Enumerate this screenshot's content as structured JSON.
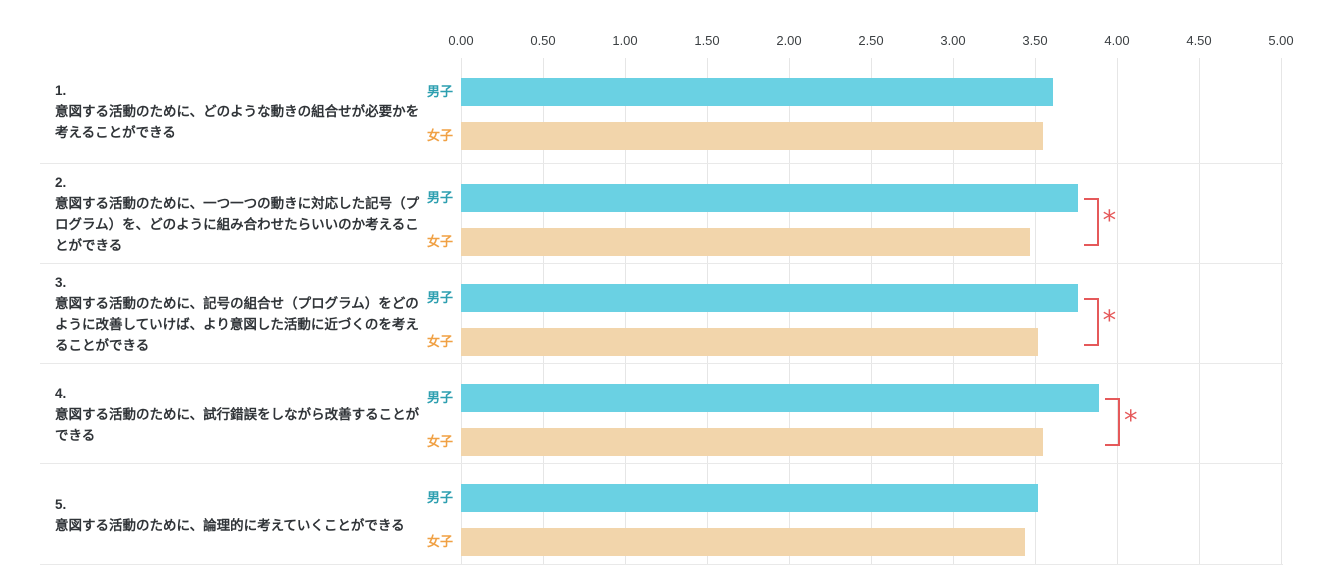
{
  "colors": {
    "male_bar": "#6ad1e3",
    "female_bar": "#f2d5ab",
    "male_label": "#2d9fb0",
    "female_label": "#f0a145",
    "significance": "#e5595a",
    "gridline": "#e6e6e6",
    "separator": "#e9e9e9",
    "axis_text": "#3c4043",
    "question_text": "#303438"
  },
  "significance_marker": "*",
  "chart_data": {
    "type": "bar",
    "orientation": "horizontal",
    "title": "",
    "xlabel": "",
    "ylabel": "",
    "xlim": [
      0,
      5
    ],
    "grid": true,
    "axis_tick_labels": [
      "0.00",
      "0.50",
      "1.00",
      "1.50",
      "2.00",
      "2.50",
      "3.00",
      "3.50",
      "4.00",
      "4.50",
      "5.00"
    ],
    "series_labels": {
      "male": "男子",
      "female": "女子"
    },
    "items": [
      {
        "number": "1.",
        "question": "意図する活動のために、どのような動きの組合せが必要かを考えることができる",
        "male": 3.61,
        "female": 3.55,
        "significant": false
      },
      {
        "number": "2.",
        "question": "意図する活動のために、一つ一つの動きに対応した記号（プログラム）を、どのように組み合わせたらいいのか考えることができる",
        "male": 3.76,
        "female": 3.47,
        "significant": true
      },
      {
        "number": "3.",
        "question": "意図する活動のために、記号の組合せ（プログラム）をどのように改善していけば、より意図した活動に近づくのを考えることができる",
        "male": 3.76,
        "female": 3.52,
        "significant": true
      },
      {
        "number": "4.",
        "question": "意図する活動のために、試行錯誤をしながら改善することができる",
        "male": 3.89,
        "female": 3.55,
        "significant": true
      },
      {
        "number": "5.",
        "question": "意図する活動のために、論理的に考えていくことができる",
        "male": 3.52,
        "female": 3.44,
        "significant": false
      }
    ]
  }
}
